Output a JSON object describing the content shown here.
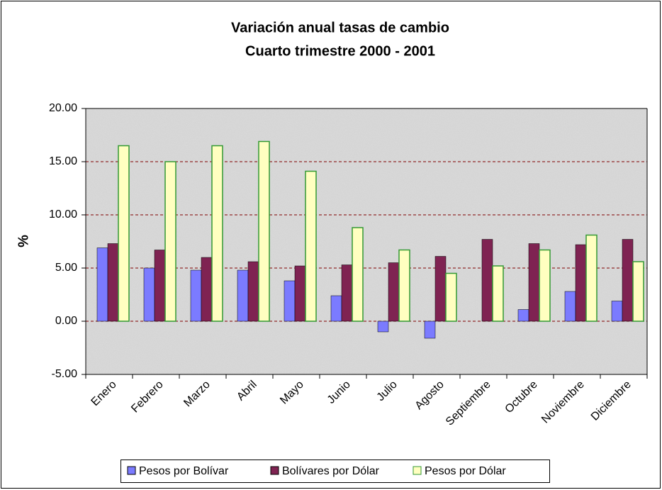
{
  "chart_data": {
    "type": "bar",
    "title": "Variación anual tasas de cambio",
    "subtitle": "Cuarto trimestre 2000 - 2001",
    "y_label": "%",
    "categories": [
      "Enero",
      "Febrero",
      "Marzo",
      "Abril",
      "Mayo",
      "Junio",
      "Julio",
      "Agosto",
      "Septiembre",
      "Octubre",
      "Noviembre",
      "Diciembre"
    ],
    "series": [
      {
        "name": "Pesos por Bolívar",
        "color": "#7b7bff",
        "values": [
          6.9,
          5.0,
          4.8,
          4.8,
          3.8,
          2.4,
          -1.0,
          -1.6,
          0.0,
          1.1,
          2.8,
          1.9
        ]
      },
      {
        "name": "Bolívares por Dólar",
        "color": "#7f2352",
        "values": [
          7.3,
          6.7,
          6.0,
          5.6,
          5.2,
          5.3,
          5.5,
          6.1,
          7.7,
          7.3,
          7.2,
          7.7
        ]
      },
      {
        "name": "Pesos por Dólar",
        "color": "#ffffc0",
        "values": [
          16.5,
          15.0,
          16.5,
          16.9,
          14.1,
          8.8,
          6.7,
          4.5,
          5.2,
          6.7,
          8.1,
          5.6
        ]
      }
    ],
    "ylim": [
      -5,
      20
    ],
    "yticks": [
      {
        "value": -5,
        "label": "-5.00"
      },
      {
        "value": 0,
        "label": "0.00"
      },
      {
        "value": 5,
        "label": "5.00"
      },
      {
        "value": 10,
        "label": "10.00"
      },
      {
        "value": 15,
        "label": "15.00"
      },
      {
        "value": 20,
        "label": "20.00"
      }
    ],
    "grid": true,
    "legend": "bottom"
  }
}
